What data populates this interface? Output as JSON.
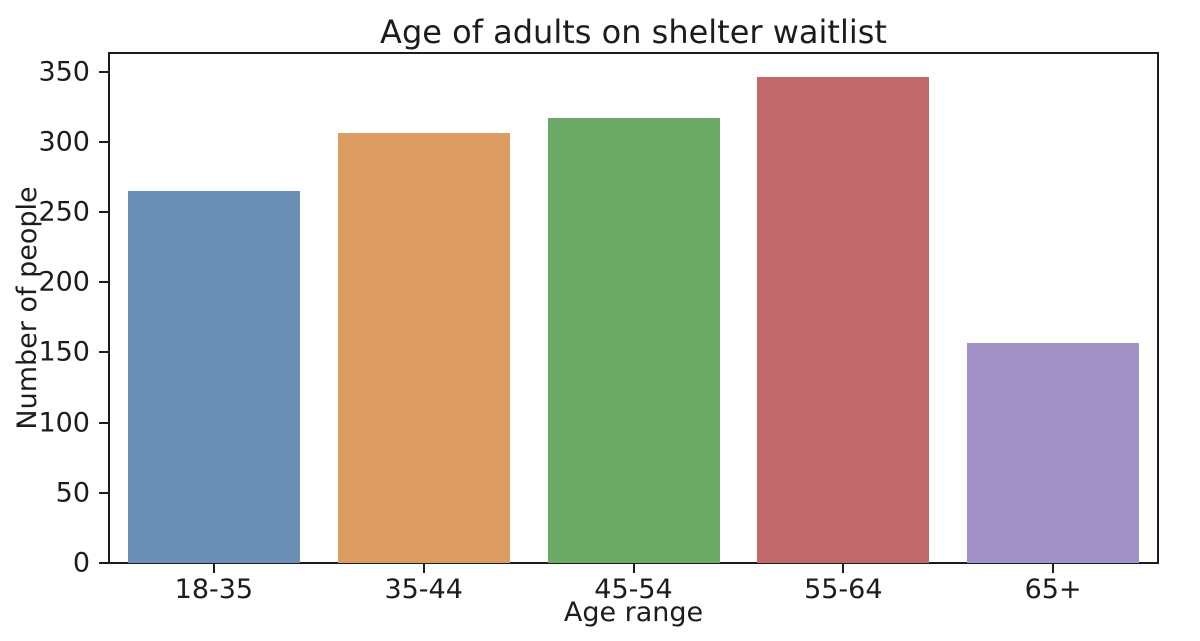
{
  "figure": {
    "background": "#ffffff",
    "text_color": "#1c1c1c",
    "spine_color": "#1c1c1c"
  },
  "chart_data": {
    "type": "bar",
    "title": "Age of adults on shelter waitlist",
    "xlabel": "Age range",
    "ylabel": "Number of people",
    "categories": [
      "18-35",
      "35-44",
      "45-54",
      "55-64",
      "65+"
    ],
    "values": [
      265,
      306,
      317,
      346,
      157
    ],
    "bar_colors": [
      "#6b8eb5",
      "#dd9d62",
      "#6aa966",
      "#c0686a",
      "#a292c6"
    ],
    "yticks": [
      0,
      50,
      100,
      150,
      200,
      250,
      300,
      350
    ],
    "ylim": [
      0,
      363.3
    ],
    "grid": false,
    "legend": "none",
    "bar_width_fraction": 0.82
  }
}
